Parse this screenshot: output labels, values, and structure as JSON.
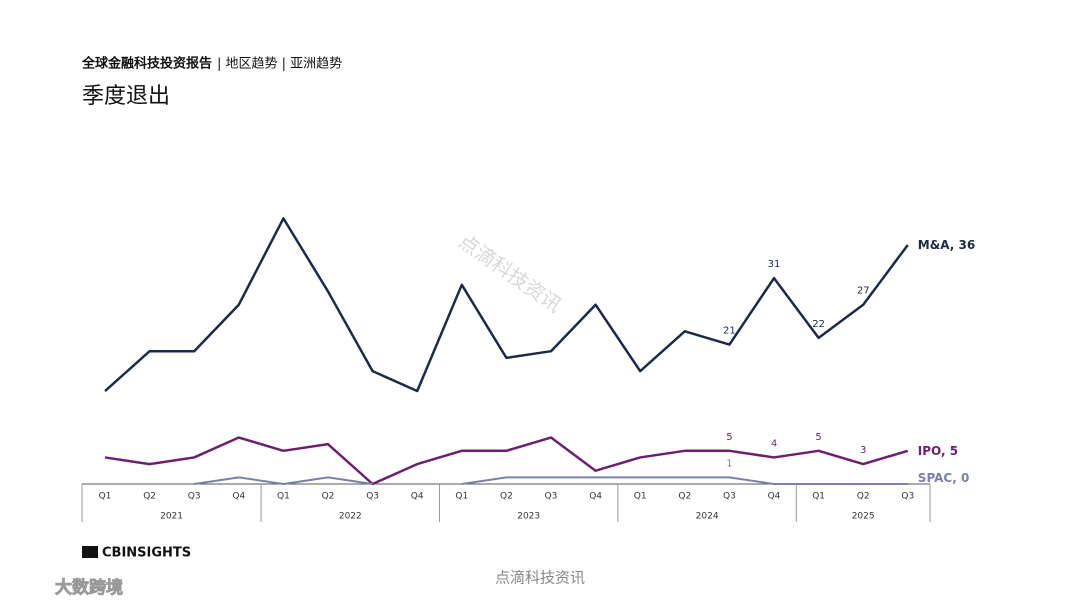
{
  "header": {
    "report": "全球金融科技投资报告",
    "section": "| 地区趋势 | 亚洲趋势"
  },
  "chart_data": {
    "type": "line",
    "title": "季度退出",
    "categories": [
      "Q1",
      "Q2",
      "Q3",
      "Q4",
      "Q1",
      "Q2",
      "Q3",
      "Q4",
      "Q1",
      "Q2",
      "Q3",
      "Q4",
      "Q1",
      "Q2",
      "Q3",
      "Q4",
      "Q1",
      "Q2",
      "Q3"
    ],
    "groups": [
      {
        "label": "2021",
        "count": 4
      },
      {
        "label": "2022",
        "count": 4
      },
      {
        "label": "2023",
        "count": 4
      },
      {
        "label": "2024",
        "count": 4
      },
      {
        "label": "2025",
        "count": 3
      }
    ],
    "ylim": [
      0,
      40
    ],
    "series": [
      {
        "name": "M&A",
        "color": "#1b2a47",
        "values": [
          14,
          20,
          20,
          27,
          40,
          29,
          17,
          14,
          30,
          19,
          20,
          27,
          17,
          23,
          21,
          31,
          22,
          27,
          36
        ],
        "value_labels": [
          null,
          null,
          null,
          null,
          null,
          null,
          null,
          null,
          null,
          null,
          null,
          null,
          null,
          null,
          "21",
          "31",
          "22",
          "27",
          null
        ]
      },
      {
        "name": "IPO",
        "color": "#6b1f6e",
        "values": [
          4,
          3,
          4,
          7,
          5,
          6,
          0,
          3,
          5,
          5,
          7,
          2,
          4,
          5,
          5,
          4,
          5,
          3,
          5
        ],
        "value_labels": [
          null,
          null,
          null,
          null,
          null,
          null,
          null,
          null,
          null,
          null,
          null,
          null,
          null,
          null,
          "5",
          "4",
          "5",
          "3",
          null
        ]
      },
      {
        "name": "SPAC",
        "color": "#7a80a8",
        "values": [
          null,
          null,
          0,
          1,
          0,
          1,
          0,
          null,
          0,
          1,
          1,
          1,
          1,
          1,
          1,
          0,
          0,
          0,
          0
        ],
        "value_labels": [
          null,
          null,
          null,
          null,
          null,
          null,
          null,
          null,
          null,
          null,
          null,
          null,
          null,
          null,
          "1",
          null,
          null,
          null,
          null
        ]
      }
    ]
  },
  "logo": "CBINSIGHTS",
  "watermark": "点滴科技资讯",
  "footer_watermark": "点滴科技资讯",
  "corner_watermark": "大数跨境"
}
